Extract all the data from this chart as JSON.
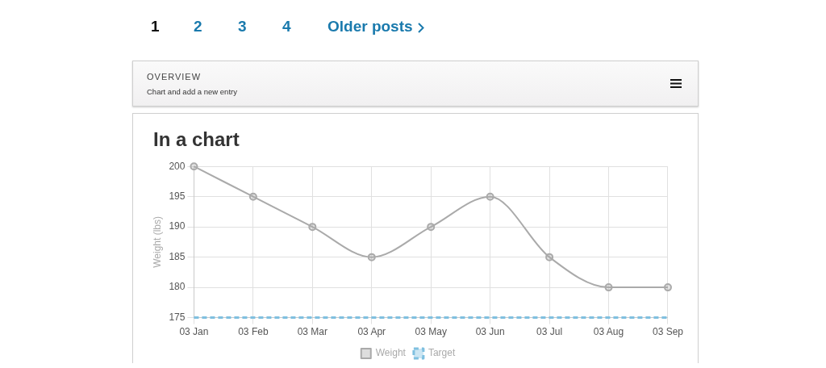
{
  "chart_data": {
    "type": "line",
    "title": "In a chart",
    "ylabel": "Weight (lbs)",
    "categories": [
      "03 Jan",
      "03 Feb",
      "03 Mar",
      "03 Apr",
      "03 May",
      "03 Jun",
      "03 Jul",
      "03 Aug",
      "03 Sep"
    ],
    "series": [
      {
        "name": "Weight",
        "color": "#aaaaaa",
        "values": [
          200,
          195,
          190,
          185,
          190,
          195,
          185,
          180,
          180
        ],
        "marker": "circle",
        "line_style": "solid"
      },
      {
        "name": "Target",
        "color": "#7fc0e0",
        "values": [
          175,
          175,
          175,
          175,
          175,
          175,
          175,
          175,
          175
        ],
        "marker": "none",
        "line_style": "dashed"
      }
    ],
    "ylim": [
      175,
      200
    ],
    "yticks": [
      175,
      180,
      185,
      190,
      195,
      200
    ],
    "grid": true,
    "legend": "bottom",
    "annotations": [
      "1",
      "2",
      "3",
      "4",
      "Older posts",
      "OVERVIEW",
      "Chart and add a new entry"
    ]
  }
}
